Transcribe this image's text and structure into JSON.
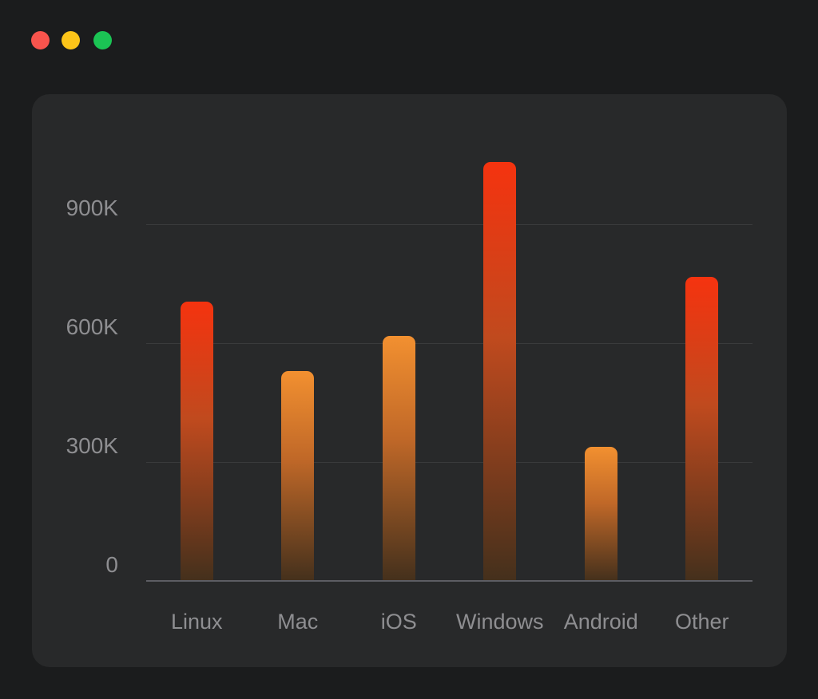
{
  "window": {
    "controls": [
      {
        "name": "close",
        "color": "#f8544d"
      },
      {
        "name": "minimize",
        "color": "#fcc419"
      },
      {
        "name": "zoom",
        "color": "#1bc454"
      }
    ]
  },
  "colors": {
    "outer_bg": "#1b1c1d",
    "card_bg": "#28292a",
    "gridline": "#3a3b3c",
    "axis_line": "#5d5d63",
    "label": "#8e8e91"
  },
  "chart_data": {
    "type": "bar",
    "title": "",
    "xlabel": "",
    "ylabel": "",
    "categories": [
      "Linux",
      "Mac",
      "iOS",
      "Windows",
      "Android",
      "Other"
    ],
    "values": [
      705000,
      529000,
      618000,
      1057000,
      338000,
      767000
    ],
    "y_ticks": [
      {
        "value": 0,
        "label": "0"
      },
      {
        "value": 300000,
        "label": "300K"
      },
      {
        "value": 600000,
        "label": "600K"
      },
      {
        "value": 900000,
        "label": "900K"
      }
    ],
    "ylim": [
      0,
      1100000
    ],
    "grid": "horizontal",
    "legend": "none",
    "bar_color_classes": [
      "red",
      "orange",
      "orange",
      "red",
      "orange",
      "red"
    ],
    "palette": {
      "red": [
        "#f5330f",
        "#c04a1e",
        "#44301c"
      ],
      "orange": [
        "#f29030",
        "#c06828",
        "#44301c"
      ]
    }
  }
}
